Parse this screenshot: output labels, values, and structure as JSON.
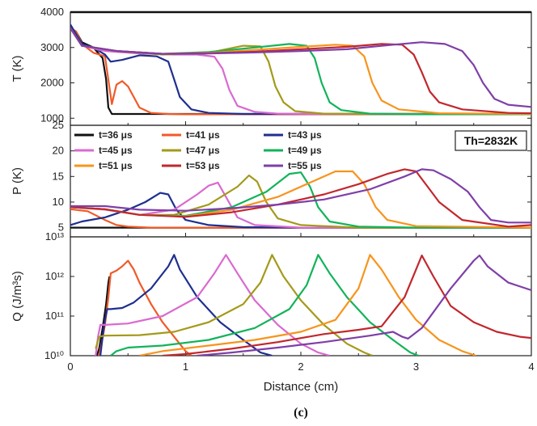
{
  "figure": {
    "caption": "(c)"
  },
  "chart_data": [
    {
      "type": "line",
      "panel": "T",
      "ylabel": "T (K)",
      "ylim": [
        800,
        4000
      ],
      "yticks": [
        "1000",
        "2000",
        "3000",
        "4000"
      ],
      "series": [
        {
          "name": "t=36 μs",
          "color": "#111111",
          "x": [
            0,
            0.05,
            0.1,
            0.2,
            0.28,
            0.31,
            0.33,
            0.36,
            0.5,
            1,
            2,
            3,
            4
          ],
          "y": [
            3550,
            3450,
            3150,
            3000,
            2700,
            2100,
            1300,
            1120,
            1120,
            1120,
            1120,
            1120,
            1120
          ]
        },
        {
          "name": "t=41 μs",
          "color": "#f05a28",
          "x": [
            0,
            0.05,
            0.1,
            0.2,
            0.3,
            0.36,
            0.4,
            0.45,
            0.5,
            0.55,
            0.6,
            0.7,
            0.85,
            1,
            1.5,
            2,
            4
          ],
          "y": [
            3550,
            3450,
            3100,
            2850,
            2750,
            1400,
            1950,
            2050,
            1900,
            1600,
            1300,
            1150,
            1120,
            1110,
            1110,
            1110,
            1110
          ]
        },
        {
          "name": "t=43 μs",
          "color": "#1f2f8f",
          "x": [
            0,
            0.1,
            0.2,
            0.3,
            0.35,
            0.45,
            0.6,
            0.75,
            0.85,
            0.9,
            0.95,
            1.05,
            1.2,
            1.5,
            2,
            4
          ],
          "y": [
            3650,
            3100,
            3000,
            2800,
            2600,
            2650,
            2780,
            2750,
            2600,
            2100,
            1600,
            1250,
            1150,
            1120,
            1120,
            1120
          ]
        },
        {
          "name": "t=45 μs",
          "color": "#d96ad0",
          "x": [
            0,
            0.1,
            0.3,
            0.6,
            0.9,
            1.1,
            1.25,
            1.32,
            1.38,
            1.45,
            1.6,
            1.8,
            2.2,
            4
          ],
          "y": [
            3550,
            3050,
            2900,
            2830,
            2800,
            2800,
            2740,
            2400,
            1800,
            1350,
            1180,
            1130,
            1120,
            1120
          ]
        },
        {
          "name": "t=47 μs",
          "color": "#a39a1a",
          "x": [
            0,
            0.1,
            0.4,
            0.8,
            1.2,
            1.5,
            1.65,
            1.72,
            1.78,
            1.85,
            1.95,
            2.2,
            2.6,
            4
          ],
          "y": [
            3550,
            3050,
            2900,
            2800,
            2850,
            3050,
            3030,
            2600,
            1900,
            1450,
            1200,
            1130,
            1120,
            1120
          ]
        },
        {
          "name": "t=49 μs",
          "color": "#12b35a",
          "x": [
            0,
            0.1,
            0.4,
            0.8,
            1.2,
            1.6,
            1.9,
            2.05,
            2.12,
            2.18,
            2.25,
            2.35,
            2.6,
            3,
            4
          ],
          "y": [
            3550,
            3050,
            2900,
            2820,
            2870,
            3000,
            3100,
            3050,
            2700,
            2000,
            1450,
            1230,
            1130,
            1110,
            1110
          ]
        },
        {
          "name": "t=51 μs",
          "color": "#f7941d",
          "x": [
            0,
            0.1,
            0.4,
            0.8,
            1.2,
            1.6,
            2,
            2.3,
            2.45,
            2.55,
            2.62,
            2.7,
            2.85,
            3.2,
            4
          ],
          "y": [
            3550,
            3050,
            2900,
            2820,
            2850,
            2930,
            3020,
            3080,
            3050,
            2750,
            2000,
            1500,
            1250,
            1140,
            1120
          ]
        },
        {
          "name": "t=53 μs",
          "color": "#c1272d",
          "x": [
            0,
            0.1,
            0.4,
            0.8,
            1.2,
            1.6,
            2,
            2.4,
            2.7,
            2.88,
            2.98,
            3.05,
            3.12,
            3.2,
            3.4,
            3.8,
            4
          ],
          "y": [
            3550,
            3050,
            2900,
            2820,
            2840,
            2880,
            2950,
            3020,
            3100,
            3080,
            2800,
            2300,
            1750,
            1450,
            1250,
            1150,
            1140
          ]
        },
        {
          "name": "t=55 μs",
          "color": "#7e3fa8",
          "x": [
            0,
            0.1,
            0.4,
            0.8,
            1.2,
            1.6,
            2,
            2.4,
            2.8,
            3.05,
            3.25,
            3.4,
            3.5,
            3.58,
            3.68,
            3.8,
            4
          ],
          "y": [
            3550,
            3050,
            2900,
            2820,
            2830,
            2860,
            2900,
            2950,
            3080,
            3150,
            3100,
            2900,
            2500,
            2000,
            1550,
            1380,
            1320
          ]
        }
      ]
    },
    {
      "type": "line",
      "panel": "P",
      "ylabel": "P (K)",
      "ylim": [
        3.2,
        25
      ],
      "yticks": [
        "5",
        "10",
        "15",
        "20",
        "25"
      ],
      "legend_location": "top-left",
      "annotation": "Th=2832K",
      "series": [
        {
          "name": "t=36 μs",
          "color": "#111111",
          "x": [
            0,
            0.2,
            0.3,
            0.35,
            0.4,
            0.6,
            1,
            2,
            4
          ],
          "y": [
            5,
            5,
            5,
            5,
            5,
            5,
            5,
            5,
            5
          ]
        },
        {
          "name": "t=41 μs",
          "color": "#f05a28",
          "x": [
            0,
            0.15,
            0.3,
            0.4,
            0.5,
            0.7,
            1,
            2,
            4
          ],
          "y": [
            8.6,
            8.2,
            6.5,
            5.5,
            5.2,
            5,
            5,
            5,
            5
          ]
        },
        {
          "name": "t=43 μs",
          "color": "#1f2f8f",
          "x": [
            0,
            0.1,
            0.3,
            0.5,
            0.65,
            0.78,
            0.85,
            0.92,
            1,
            1.2,
            1.5,
            2,
            4
          ],
          "y": [
            5.5,
            6.2,
            7,
            8.5,
            10,
            11.8,
            11.5,
            8.5,
            6.5,
            5.5,
            5.1,
            5,
            5
          ]
        },
        {
          "name": "t=45 μs",
          "color": "#d96ad0",
          "x": [
            0,
            0.3,
            0.6,
            0.9,
            1.1,
            1.2,
            1.28,
            1.35,
            1.45,
            1.6,
            2,
            4
          ],
          "y": [
            9,
            8.5,
            7.5,
            8.5,
            11.5,
            13.2,
            13.8,
            11,
            7,
            5.5,
            5,
            5
          ]
        },
        {
          "name": "t=47 μs",
          "color": "#a39a1a",
          "x": [
            0,
            0.3,
            0.6,
            0.9,
            1.2,
            1.45,
            1.55,
            1.62,
            1.7,
            1.8,
            2,
            2.5,
            4
          ],
          "y": [
            9,
            8.6,
            7.5,
            7.5,
            9.5,
            13,
            15.2,
            14,
            10,
            6.8,
            5.5,
            5,
            5
          ]
        },
        {
          "name": "t=49 μs",
          "color": "#12b35a",
          "x": [
            0,
            0.3,
            0.6,
            1,
            1.4,
            1.7,
            1.9,
            2,
            2.08,
            2.15,
            2.25,
            2.5,
            3,
            4
          ],
          "y": [
            9,
            8.6,
            7.5,
            7.3,
            9,
            12,
            15.5,
            15.8,
            13,
            9,
            6.2,
            5.2,
            5,
            5
          ]
        },
        {
          "name": "t=51 μs",
          "color": "#f7941d",
          "x": [
            0,
            0.3,
            0.6,
            1,
            1.4,
            1.8,
            2.1,
            2.3,
            2.45,
            2.55,
            2.65,
            2.75,
            3,
            4
          ],
          "y": [
            9,
            8.6,
            7.5,
            7.2,
            8.5,
            11,
            14,
            16,
            16,
            13.5,
            9,
            6.5,
            5.3,
            5
          ]
        },
        {
          "name": "t=53 μs",
          "color": "#c1272d",
          "x": [
            0,
            0.3,
            0.6,
            1,
            1.4,
            1.8,
            2.2,
            2.5,
            2.75,
            2.9,
            3,
            3.1,
            3.2,
            3.4,
            3.8,
            4
          ],
          "y": [
            9,
            8.6,
            7.5,
            7.1,
            8,
            9.5,
            11.5,
            13.5,
            15.5,
            16.4,
            16,
            13,
            10,
            6.5,
            5.2,
            5.5
          ]
        },
        {
          "name": "t=55 μs",
          "color": "#7e3fa8",
          "x": [
            0,
            0.3,
            0.6,
            1,
            1.4,
            1.8,
            2.2,
            2.6,
            2.9,
            3.05,
            3.15,
            3.3,
            3.45,
            3.55,
            3.65,
            3.8,
            4
          ],
          "y": [
            9.2,
            9.2,
            8.5,
            8.3,
            8.8,
            9.5,
            10.5,
            12.5,
            15,
            16.4,
            16.2,
            14.5,
            12,
            9,
            6.5,
            6,
            6
          ]
        }
      ]
    },
    {
      "type": "line",
      "panel": "Q",
      "ylabel": "Q (J/m³s)",
      "yscale": "log",
      "ylim": [
        10000000000.0,
        10000000000000.0
      ],
      "yticks": [
        "10¹⁰",
        "10¹¹",
        "10¹²",
        "10¹³"
      ],
      "xlabel": "Distance (cm)",
      "xlim": [
        0,
        4
      ],
      "xticks": [
        "0",
        "1",
        "2",
        "3",
        "4"
      ],
      "series": [
        {
          "name": "t=36 μs",
          "color": "#111111",
          "x": [
            0.23,
            0.25,
            0.28,
            0.31,
            0.33,
            0.34
          ],
          "y": [
            10000000000.0,
            15000000000.0,
            50000000000.0,
            200000000000.0,
            700000000000.0,
            1000000000000.0
          ]
        },
        {
          "name": "t=41 μs",
          "color": "#f05a28",
          "x": [
            0.25,
            0.27,
            0.3,
            0.33,
            0.35,
            0.4,
            0.45,
            0.5,
            0.55,
            0.6,
            0.7,
            0.8,
            0.9,
            1,
            1.05
          ],
          "y": [
            10000000000.0,
            20000000000.0,
            60000000000.0,
            300000000000.0,
            1200000000000.0,
            1400000000000.0,
            1800000000000.0,
            2500000000000.0,
            1500000000000.0,
            700000000000.0,
            200000000000.0,
            70000000000.0,
            30000000000.0,
            13000000000.0,
            10000000000.0
          ]
        },
        {
          "name": "t=43 μs",
          "color": "#1f2f8f",
          "x": [
            0.26,
            0.28,
            0.3,
            0.32,
            0.35,
            0.45,
            0.55,
            0.7,
            0.85,
            0.9,
            0.95,
            1.1,
            1.3,
            1.5,
            1.65,
            1.75
          ],
          "y": [
            10000000000.0,
            30000000000.0,
            80000000000.0,
            150000000000.0,
            150000000000.0,
            160000000000.0,
            220000000000.0,
            500000000000.0,
            1800000000000.0,
            3500000000000.0,
            1500000000000.0,
            300000000000.0,
            70000000000.0,
            25000000000.0,
            12000000000.0,
            10000000000.0
          ]
        },
        {
          "name": "t=45 μs",
          "color": "#d96ad0",
          "x": [
            0.22,
            0.24,
            0.26,
            0.3,
            0.5,
            0.8,
            1.1,
            1.25,
            1.35,
            1.45,
            1.6,
            1.8,
            2,
            2.15,
            2.25
          ],
          "y": [
            10000000000.0,
            30000000000.0,
            60000000000.0,
            60000000000.0,
            65000000000.0,
            100000000000.0,
            300000000000.0,
            1200000000000.0,
            3500000000000.0,
            1200000000000.0,
            250000000000.0,
            60000000000.0,
            20000000000.0,
            12000000000.0,
            10000000000.0
          ]
        },
        {
          "name": "t=47 μs",
          "color": "#a39a1a",
          "x": [
            0.22,
            0.25,
            0.3,
            0.6,
            0.9,
            1.2,
            1.5,
            1.65,
            1.75,
            1.85,
            2,
            2.2,
            2.4,
            2.55,
            2.62
          ],
          "y": [
            15000000000.0,
            30000000000.0,
            32000000000.0,
            33000000000.0,
            40000000000.0,
            70000000000.0,
            200000000000.0,
            700000000000.0,
            3500000000000.0,
            1000000000000.0,
            250000000000.0,
            60000000000.0,
            20000000000.0,
            12000000000.0,
            10000000000.0
          ]
        },
        {
          "name": "t=49 μs",
          "color": "#12b35a",
          "x": [
            0.35,
            0.4,
            0.5,
            0.8,
            1.2,
            1.6,
            1.9,
            2.05,
            2.15,
            2.25,
            2.4,
            2.6,
            2.8,
            2.95,
            3.02
          ],
          "y": [
            10000000000.0,
            13000000000.0,
            16000000000.0,
            18000000000.0,
            25000000000.0,
            50000000000.0,
            150000000000.0,
            600000000000.0,
            3500000000000.0,
            1200000000000.0,
            300000000000.0,
            70000000000.0,
            25000000000.0,
            12000000000.0,
            10000000000.0
          ]
        },
        {
          "name": "t=51 μs",
          "color": "#f7941d",
          "x": [
            0.6,
            0.8,
            1.2,
            1.6,
            2,
            2.3,
            2.5,
            2.6,
            2.7,
            2.85,
            3,
            3.2,
            3.4,
            3.52
          ],
          "y": [
            10000000000.0,
            13000000000.0,
            18000000000.0,
            25000000000.0,
            40000000000.0,
            80000000000.0,
            500000000000.0,
            3500000000000.0,
            1500000000000.0,
            300000000000.0,
            80000000000.0,
            25000000000.0,
            13000000000.0,
            10000000000.0
          ]
        },
        {
          "name": "t=53 μs",
          "color": "#c1272d",
          "x": [
            0.8,
            1,
            1.4,
            1.8,
            2.2,
            2.5,
            2.7,
            2.9,
            3.05,
            3.15,
            3.3,
            3.5,
            3.7,
            3.9,
            4
          ],
          "y": [
            10000000000.0,
            11000000000.0,
            15000000000.0,
            22000000000.0,
            35000000000.0,
            45000000000.0,
            55000000000.0,
            300000000000.0,
            3400000000000.0,
            1000000000000.0,
            180000000000.0,
            70000000000.0,
            40000000000.0,
            30000000000.0,
            28000000000.0
          ]
        },
        {
          "name": "t=55 μs",
          "color": "#7e3fa8",
          "x": [
            1.1,
            1.4,
            1.8,
            2.2,
            2.6,
            2.8,
            2.88,
            2.93,
            3.05,
            3.3,
            3.5,
            3.55,
            3.62,
            3.8,
            4
          ],
          "y": [
            10000000000.0,
            12000000000.0,
            16000000000.0,
            22000000000.0,
            32000000000.0,
            40000000000.0,
            30000000000.0,
            27000000000.0,
            50000000000.0,
            500000000000.0,
            2500000000000.0,
            3400000000000.0,
            1800000000000.0,
            700000000000.0,
            450000000000.0
          ]
        }
      ]
    }
  ]
}
